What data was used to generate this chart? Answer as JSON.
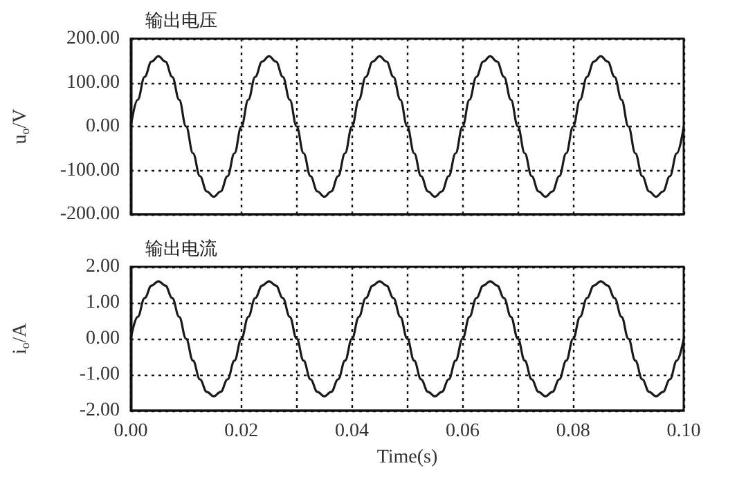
{
  "chart_data": [
    {
      "type": "line",
      "title": "输出电压",
      "ylabel": "u$_{o}$/V",
      "color": "#1a1a1a",
      "marker": "none",
      "line_style": "solid",
      "grid": true,
      "tick_labels": "y",
      "x": [
        0,
        0.00125,
        0.0025,
        0.00375,
        0.005,
        0.00625,
        0.0075,
        0.00875,
        0.01,
        0.01125,
        0.0125,
        0.01375,
        0.015,
        0.01625,
        0.0175,
        0.01875,
        0.02,
        0.02125,
        0.0225,
        0.02375,
        0.025,
        0.02625,
        0.0275,
        0.02875,
        0.03,
        0.03125,
        0.0325,
        0.03375,
        0.035,
        0.03625,
        0.0375,
        0.03875,
        0.04,
        0.04125,
        0.0425,
        0.04375,
        0.045,
        0.04625,
        0.0475,
        0.04875,
        0.05,
        0.05125,
        0.0525,
        0.05375,
        0.055,
        0.05625,
        0.0575,
        0.05875,
        0.06,
        0.06125,
        0.0625,
        0.06375,
        0.065,
        0.06625,
        0.0675,
        0.06875,
        0.07,
        0.07125,
        0.0725,
        0.07375,
        0.075,
        0.07625,
        0.0775,
        0.07875,
        0.08,
        0.08125,
        0.0825,
        0.08375,
        0.085,
        0.08625,
        0.0875,
        0.08875,
        0.09,
        0.09125,
        0.0925,
        0.09375,
        0.095,
        0.09625,
        0.0975,
        0.09875,
        0.1
      ],
      "values": [
        0,
        61,
        113,
        148,
        160,
        148,
        113,
        61,
        0,
        -61,
        -113,
        -148,
        -160,
        -148,
        -113,
        -61,
        0,
        61,
        113,
        148,
        160,
        148,
        113,
        61,
        0,
        -61,
        -113,
        -148,
        -160,
        -148,
        -113,
        -61,
        0,
        61,
        113,
        148,
        160,
        148,
        113,
        61,
        0,
        -61,
        -113,
        -148,
        -160,
        -148,
        -113,
        -61,
        0,
        61,
        113,
        148,
        160,
        148,
        113,
        61,
        0,
        -61,
        -113,
        -148,
        -160,
        -148,
        -113,
        -61,
        0,
        61,
        113,
        148,
        160,
        148,
        113,
        61,
        0,
        -61,
        -113,
        -148,
        -160,
        -148,
        -113,
        -61,
        0
      ],
      "xlim": [
        0,
        0.1
      ],
      "xticks": [
        {
          "value": 0,
          "label": null
        },
        {
          "value": 0.02,
          "label": null
        },
        {
          "value": 0.03,
          "label": null
        },
        {
          "value": 0.04,
          "label": null
        },
        {
          "value": 0.05,
          "label": null
        },
        {
          "value": 0.06,
          "label": null
        },
        {
          "value": 0.07,
          "label": null
        },
        {
          "value": 0.08,
          "label": null
        },
        {
          "value": 0.1,
          "label": null
        }
      ],
      "ylim": [
        -200,
        200
      ],
      "yticks": [
        {
          "value": -200,
          "label": "-200.00"
        },
        {
          "value": -100,
          "label": "-100.00"
        },
        {
          "value": 0,
          "label": "0.00"
        },
        {
          "value": 100,
          "label": "100.00"
        },
        {
          "value": 200,
          "label": "200.00"
        }
      ]
    },
    {
      "type": "line",
      "title": "输出电流",
      "xlabel": "Time(s)",
      "ylabel": "i$_{o}$/A",
      "color": "#1a1a1a",
      "marker": "none",
      "line_style": "solid",
      "grid": true,
      "x": [
        0,
        0.00125,
        0.0025,
        0.00375,
        0.005,
        0.00625,
        0.0075,
        0.00875,
        0.01,
        0.01125,
        0.0125,
        0.01375,
        0.015,
        0.01625,
        0.0175,
        0.01875,
        0.02,
        0.02125,
        0.0225,
        0.02375,
        0.025,
        0.02625,
        0.0275,
        0.02875,
        0.03,
        0.03125,
        0.0325,
        0.03375,
        0.035,
        0.03625,
        0.0375,
        0.03875,
        0.04,
        0.04125,
        0.0425,
        0.04375,
        0.045,
        0.04625,
        0.0475,
        0.04875,
        0.05,
        0.05125,
        0.0525,
        0.05375,
        0.055,
        0.05625,
        0.0575,
        0.05875,
        0.06,
        0.06125,
        0.0625,
        0.06375,
        0.065,
        0.06625,
        0.0675,
        0.06875,
        0.07,
        0.07125,
        0.0725,
        0.07375,
        0.075,
        0.07625,
        0.0775,
        0.07875,
        0.08,
        0.08125,
        0.0825,
        0.08375,
        0.085,
        0.08625,
        0.0875,
        0.08875,
        0.09,
        0.09125,
        0.0925,
        0.09375,
        0.095,
        0.09625,
        0.0975,
        0.09875,
        0.1
      ],
      "values": [
        0,
        0.61,
        1.13,
        1.48,
        1.6,
        1.48,
        1.13,
        0.61,
        0,
        -0.61,
        -1.13,
        -1.48,
        -1.6,
        -1.48,
        -1.13,
        -0.61,
        0,
        0.61,
        1.13,
        1.48,
        1.6,
        1.48,
        1.13,
        0.61,
        0,
        -0.61,
        -1.13,
        -1.48,
        -1.6,
        -1.48,
        -1.13,
        -0.61,
        0,
        0.61,
        1.13,
        1.48,
        1.6,
        1.48,
        1.13,
        0.61,
        0,
        -0.61,
        -1.13,
        -1.48,
        -1.6,
        -1.48,
        -1.13,
        -0.61,
        0,
        0.61,
        1.13,
        1.48,
        1.6,
        1.48,
        1.13,
        0.61,
        0,
        -0.61,
        -1.13,
        -1.48,
        -1.6,
        -1.48,
        -1.13,
        -0.61,
        0,
        0.61,
        1.13,
        1.48,
        1.6,
        1.48,
        1.13,
        0.61,
        0,
        -0.61,
        -1.13,
        -1.48,
        -1.6,
        -1.48,
        -1.13,
        -0.61,
        0
      ],
      "xlim": [
        0,
        0.1
      ],
      "xticks": [
        {
          "value": 0,
          "label": "0.00"
        },
        {
          "value": 0.02,
          "label": "0.02"
        },
        {
          "value": 0.03,
          "label": null
        },
        {
          "value": 0.04,
          "label": "0.04"
        },
        {
          "value": 0.05,
          "label": null
        },
        {
          "value": 0.06,
          "label": "0.06"
        },
        {
          "value": 0.07,
          "label": null
        },
        {
          "value": 0.08,
          "label": "0.08"
        },
        {
          "value": 0.1,
          "label": "0.10"
        }
      ],
      "ylim": [
        -2,
        2
      ],
      "yticks": [
        {
          "value": -2,
          "label": "-2.00"
        },
        {
          "value": -1,
          "label": "-1.00"
        },
        {
          "value": 0,
          "label": "0.00"
        },
        {
          "value": 1,
          "label": "1.00"
        },
        {
          "value": 2,
          "label": "2.00"
        }
      ]
    }
  ]
}
